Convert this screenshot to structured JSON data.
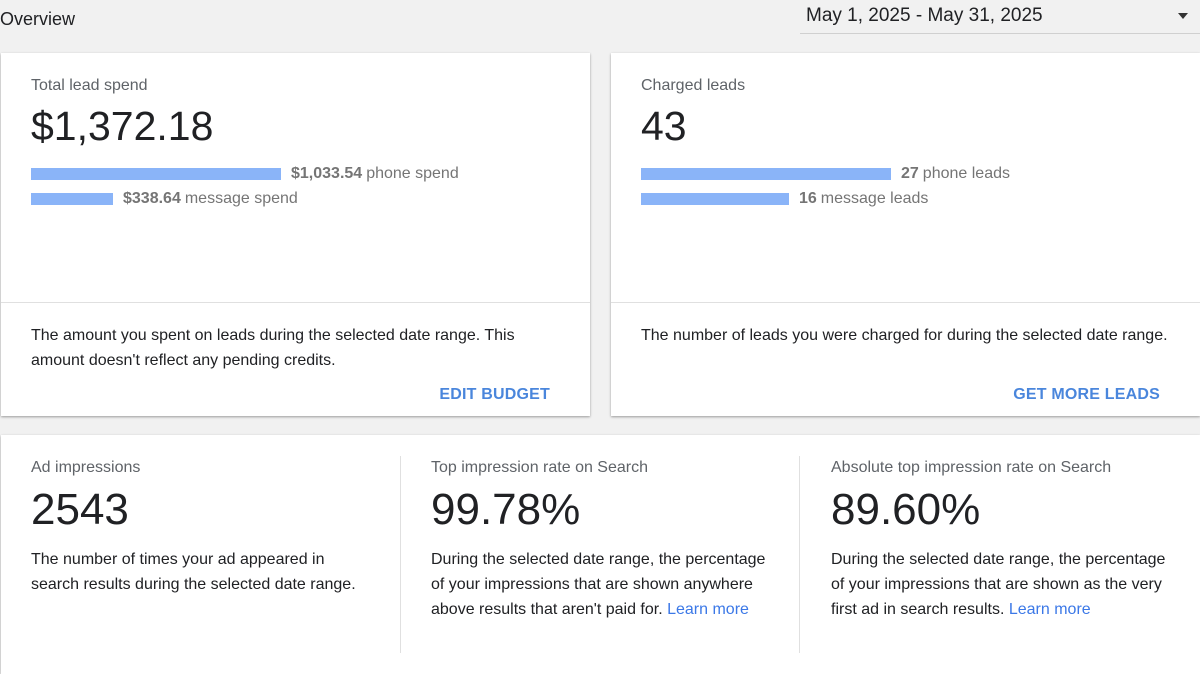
{
  "header": {
    "title": "Overview",
    "date_range": "May 1, 2025 - May 31, 2025"
  },
  "colors": {
    "bar": "#8ab4f8",
    "action": "#4a86dc",
    "link": "#3b78e7"
  },
  "spend_card": {
    "label": "Total lead spend",
    "value": "$1,372.18",
    "phone_amount": "$1,033.54",
    "phone_text": "phone spend",
    "phone_value": 1033.54,
    "message_amount": "$338.64",
    "message_text": "message spend",
    "message_value": 338.64,
    "description": "The amount you spent on leads during the selected date range. This amount doesn't reflect any pending credits.",
    "action": "EDIT BUDGET"
  },
  "leads_card": {
    "label": "Charged leads",
    "value": "43",
    "phone_amount": "27",
    "phone_text": "phone leads",
    "phone_value": 27,
    "message_amount": "16",
    "message_text": "message leads",
    "message_value": 16,
    "description": "The number of leads you were charged for during the selected date range.",
    "action": "GET MORE LEADS"
  },
  "impressions": {
    "ad": {
      "label": "Ad impressions",
      "value": "2543",
      "description": "The number of times your ad appeared in search results during the selected date range."
    },
    "top": {
      "label": "Top impression rate on Search",
      "value": "99.78%",
      "description": "During the selected date range, the percentage of your impressions that are shown anywhere above results that aren't paid for.",
      "link": "Learn more"
    },
    "absolute": {
      "label": "Absolute top impression rate on Search",
      "value": "89.60%",
      "description": "During the selected date range, the percentage of your impressions that are shown as the very first ad in search results.",
      "link": "Learn more"
    }
  }
}
